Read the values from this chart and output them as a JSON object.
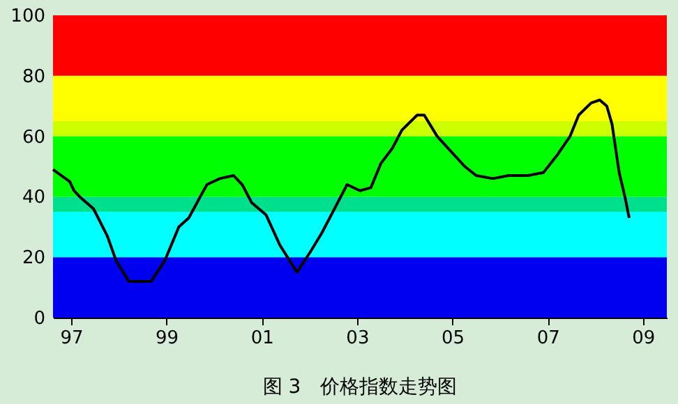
{
  "chart_data": {
    "type": "line",
    "title": "图 3　价格指数走势图",
    "xlim": [
      1996.62,
      2009.5
    ],
    "xticks": [
      {
        "value": 1997,
        "label": "97"
      },
      {
        "value": 1999,
        "label": "99"
      },
      {
        "value": 2001,
        "label": "01"
      },
      {
        "value": 2003,
        "label": "03"
      },
      {
        "value": 2005,
        "label": "05"
      },
      {
        "value": 2007,
        "label": "07"
      },
      {
        "value": 2009,
        "label": "09"
      }
    ],
    "ylim": [
      0,
      100
    ],
    "yticks": [
      0,
      20,
      40,
      60,
      80,
      100
    ],
    "marker": "none",
    "line_style": "solid",
    "bands": [
      {
        "axis": "y",
        "from": 0,
        "to": 20,
        "color": "#0000f0"
      },
      {
        "axis": "y",
        "from": 20,
        "to": 35,
        "color": "#00ffff"
      },
      {
        "axis": "y",
        "from": 35,
        "to": 40,
        "color": "#00e08c"
      },
      {
        "axis": "y",
        "from": 40,
        "to": 60,
        "color": "#00ff00"
      },
      {
        "axis": "y",
        "from": 60,
        "to": 65,
        "color": "#ccff00"
      },
      {
        "axis": "y",
        "from": 65,
        "to": 80,
        "color": "#ffff00"
      },
      {
        "axis": "y",
        "from": 80,
        "to": 100,
        "color": "#ff0000"
      }
    ],
    "series": [
      {
        "color": "#000000",
        "x": [
          1996.62,
          1996.97,
          1997.06,
          1997.18,
          1997.47,
          1997.76,
          1997.94,
          1998.21,
          1998.68,
          1998.97,
          1999.26,
          1999.47,
          1999.71,
          1999.85,
          2000.12,
          2000.41,
          2000.59,
          2000.79,
          2001.09,
          2001.38,
          2001.74,
          2002.03,
          2002.26,
          2002.56,
          2002.79,
          2003.06,
          2003.29,
          2003.5,
          2003.74,
          2003.94,
          2004.26,
          2004.41,
          2004.68,
          2004.91,
          2005.26,
          2005.5,
          2005.85,
          2006.18,
          2006.59,
          2006.91,
          2007.21,
          2007.47,
          2007.65,
          2007.91,
          2008.09,
          2008.24,
          2008.35,
          2008.5,
          2008.62,
          2008.71
        ],
        "values": [
          49,
          45,
          42,
          40,
          36,
          27,
          19,
          12,
          12,
          19,
          30,
          33,
          40,
          44,
          46,
          47,
          44,
          38,
          34,
          24,
          15,
          22,
          28,
          37,
          44,
          42,
          43,
          51,
          56,
          62,
          67,
          67,
          60,
          56,
          50,
          47,
          46,
          47,
          47,
          48,
          54,
          60,
          67,
          71,
          72,
          70,
          64,
          48,
          40,
          33
        ]
      }
    ]
  }
}
